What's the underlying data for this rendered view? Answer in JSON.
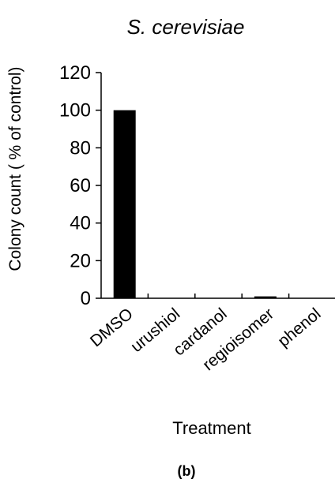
{
  "chart_data": {
    "type": "bar",
    "title": "S. cerevisiae",
    "xlabel": "Treatment",
    "ylabel": "Colony count ( % of control)",
    "categories": [
      "DMSO",
      "urushiol",
      "cardanol",
      "regioisomer",
      "phenol"
    ],
    "values": [
      100,
      0,
      0,
      1,
      0
    ],
    "ylim": [
      0,
      120
    ],
    "yticks": [
      0,
      20,
      40,
      60,
      80,
      100,
      120
    ],
    "bar_color": "#000000",
    "grid": false,
    "legend": "none"
  },
  "caption": "(b)"
}
